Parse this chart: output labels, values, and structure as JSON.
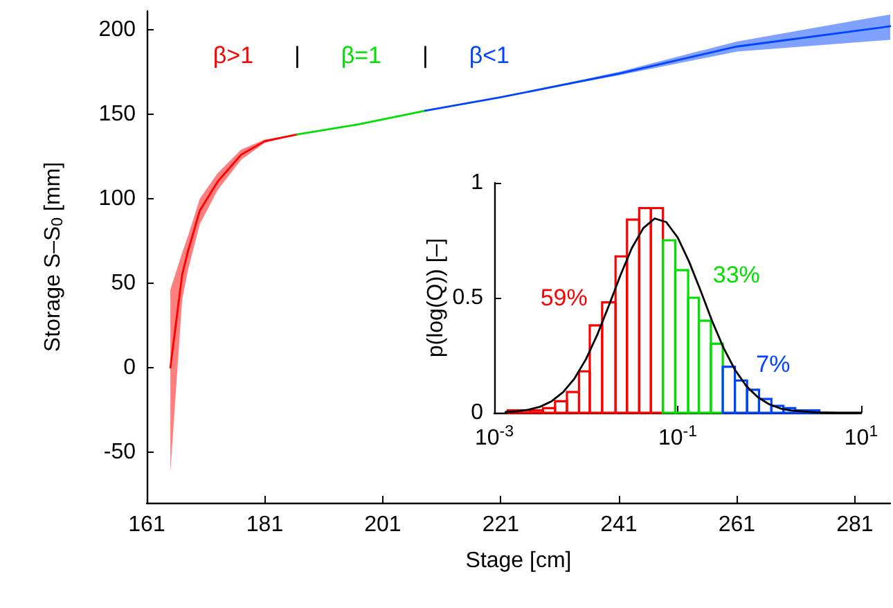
{
  "chart_data": [
    {
      "type": "line",
      "xlabel": "Stage [cm]",
      "ylabel": "Storage S–S$_{0}$ [mm]",
      "xlim": [
        161,
        287
      ],
      "xticks": [
        161,
        181,
        201,
        221,
        241,
        261,
        281
      ],
      "ylim": [
        -80,
        211
      ],
      "yticks": [
        -50,
        0,
        50,
        100,
        150,
        200
      ],
      "marker": "none",
      "line_style": "solid",
      "series": [
        {
          "name": "β>1",
          "color": "#ff0000",
          "x": [
            165,
            167,
            168,
            170,
            173,
            177,
            181,
            186.5
          ],
          "values": [
            0,
            55,
            69,
            93,
            110,
            126,
            134,
            138
          ],
          "lower": [
            -62,
            40,
            58,
            85,
            105,
            123,
            133,
            138
          ],
          "upper": [
            46,
            68,
            78,
            100,
            115,
            129,
            135,
            138
          ]
        },
        {
          "name": "β=1",
          "color": "#00e000",
          "x": [
            186.5,
            197,
            208.2
          ],
          "values": [
            138,
            144,
            152
          ]
        },
        {
          "name": "β<1",
          "color": "#0044ff",
          "x": [
            208.2,
            221,
            241,
            261,
            287
          ],
          "values": [
            152,
            160,
            174,
            190,
            202
          ],
          "lower": [
            152,
            160,
            173,
            187,
            194
          ],
          "upper": [
            152,
            160,
            175,
            193,
            209
          ]
        }
      ],
      "annotations": [
        "|",
        "|"
      ]
    },
    {
      "type": "histogram",
      "ylabel": "p(log(Q)) [–]",
      "log": "x",
      "xlim": [
        0.001,
        10
      ],
      "xticks": [
        {
          "value": 0.001,
          "label": "10$^{-3}$"
        },
        {
          "value": 0.1,
          "label": "10$^{-1}$"
        },
        {
          "value": 10,
          "label": "10$^{1}$"
        }
      ],
      "ylim": [
        0,
        1
      ],
      "yticks": [
        0,
        0.5,
        1
      ],
      "marker": "none",
      "bins": [
        0.0014,
        0.0019,
        0.0025,
        0.0034,
        0.0046,
        0.0062,
        0.0084,
        0.011,
        0.015,
        0.021,
        0.028,
        0.038,
        0.051,
        0.069,
        0.094,
        0.13,
        0.17,
        0.23,
        0.31,
        0.42,
        0.57,
        0.77,
        1.05,
        1.42,
        1.91,
        2.6,
        3.5
      ],
      "values": [
        0.01,
        0.01,
        0.01,
        0.02,
        0.05,
        0.09,
        0.18,
        0.38,
        0.48,
        0.68,
        0.84,
        0.89,
        0.89,
        0.75,
        0.62,
        0.5,
        0.4,
        0.3,
        0.2,
        0.14,
        0.1,
        0.06,
        0.03,
        0.02,
        0.01,
        0.01
      ],
      "colors": [
        "#ff0000",
        "#ff0000",
        "#ff0000",
        "#ff0000",
        "#ff0000",
        "#ff0000",
        "#ff0000",
        "#ff0000",
        "#ff0000",
        "#ff0000",
        "#ff0000",
        "#ff0000",
        "#ff0000",
        "#00e000",
        "#00e000",
        "#00e000",
        "#00e000",
        "#00e000",
        "#0044ff",
        "#0044ff",
        "#0044ff",
        "#0044ff",
        "#0044ff",
        "#0044ff",
        "#0044ff",
        "#0044ff"
      ],
      "series": [
        {
          "type": "line",
          "color": "#000000",
          "x": [
            0.00133,
            0.00178,
            0.00237,
            0.00316,
            0.00422,
            0.00562,
            0.0075,
            0.01,
            0.0133,
            0.0178,
            0.0237,
            0.0316,
            0.0422,
            0.0562,
            0.075,
            0.1,
            0.133,
            0.178,
            0.237,
            0.316,
            0.422,
            0.562,
            0.75,
            1,
            1.33,
            1.78,
            3.16,
            5.62,
            10
          ],
          "values": [
            0.003,
            0.006,
            0.013,
            0.026,
            0.05,
            0.089,
            0.149,
            0.233,
            0.34,
            0.467,
            0.597,
            0.716,
            0.803,
            0.845,
            0.829,
            0.762,
            0.657,
            0.53,
            0.399,
            0.282,
            0.186,
            0.115,
            0.067,
            0.036,
            0.018,
            0.009,
            0.002,
            0,
            0
          ]
        }
      ],
      "annotations": [
        "59%",
        "33%",
        "7%"
      ]
    }
  ]
}
